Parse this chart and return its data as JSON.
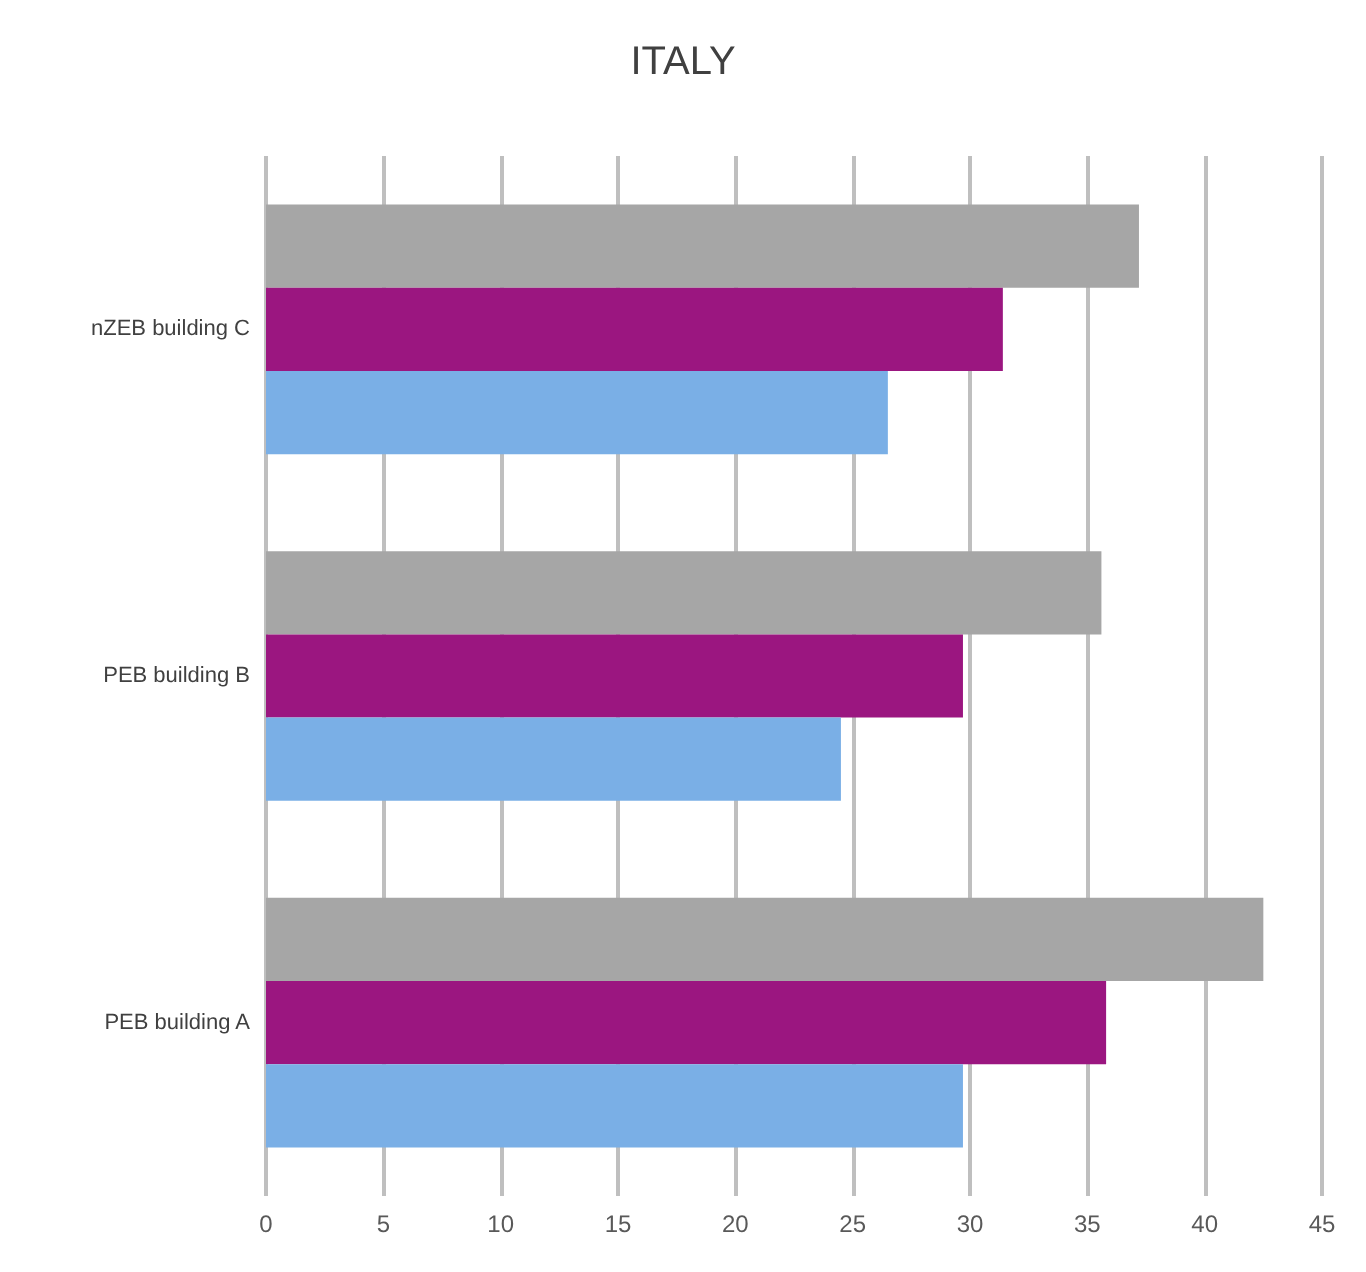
{
  "chart_data": {
    "type": "bar",
    "title": "ITALY",
    "orientation": "horizontal",
    "categories": [
      "nZEB building C",
      "PEB building B",
      "PEB building A"
    ],
    "series": [
      {
        "color": "#a6a6a6",
        "values": [
          37.2,
          35.6,
          42.5
        ]
      },
      {
        "color": "#9b1680",
        "values": [
          31.4,
          29.7,
          35.8
        ]
      },
      {
        "color": "#7aafe6",
        "values": [
          26.5,
          24.5,
          29.7
        ]
      }
    ],
    "xlim": [
      0,
      45
    ],
    "xticks": [
      0,
      5,
      10,
      15,
      20,
      25,
      30,
      35,
      40,
      45
    ],
    "grid": "x"
  }
}
